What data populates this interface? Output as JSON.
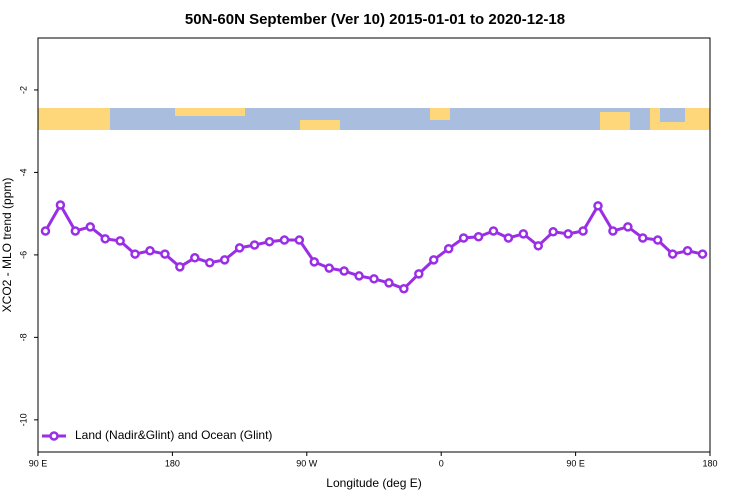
{
  "chart_data": {
    "type": "line",
    "title": "50N-60N September (Ver 10)   2015-01-01 to 2020-12-18",
    "x_label": "Longitude (deg E)",
    "y_label": "XCO2 - MLO trend (ppm)",
    "xlim": [
      90,
      540
    ],
    "xticks": [
      {
        "value": 90,
        "label": "90 E"
      },
      {
        "value": 180,
        "label": "180"
      },
      {
        "value": 270,
        "label": "90 W"
      },
      {
        "value": 360,
        "label": "0"
      },
      {
        "value": 450,
        "label": "90 E"
      },
      {
        "value": 540,
        "label": "180"
      }
    ],
    "ylim": [
      -10.78,
      -0.74
    ],
    "yticks": [
      -2,
      -4,
      -6,
      -8,
      -10
    ],
    "legend": "bottom-left",
    "x": [
      95,
      105,
      115,
      125,
      135,
      145,
      155,
      165,
      175,
      185,
      195,
      205,
      215,
      225,
      235,
      245,
      255,
      265,
      275,
      285,
      295,
      305,
      315,
      325,
      335,
      345,
      355,
      365,
      375,
      385,
      395,
      405,
      415,
      425,
      435,
      445,
      455,
      465,
      475,
      485,
      495,
      505,
      515,
      525,
      535
    ],
    "series": [
      {
        "name": "Land (Nadir&Glint) and Ocean (Glint)",
        "color": "#9a2ee6",
        "values": [
          -5.42,
          -4.79,
          -5.42,
          -5.32,
          -5.61,
          -5.66,
          -5.98,
          -5.9,
          -5.98,
          -6.29,
          -6.07,
          -6.19,
          -6.12,
          -5.83,
          -5.76,
          -5.68,
          -5.64,
          -5.64,
          -6.17,
          -6.32,
          -6.39,
          -6.51,
          -6.58,
          -6.68,
          -6.82,
          -6.46,
          -6.12,
          -5.85,
          -5.59,
          -5.56,
          -5.42,
          -5.59,
          -5.49,
          -5.78,
          -5.44,
          -5.49,
          -5.42,
          -4.81,
          -5.42,
          -5.32,
          -5.59,
          -5.64,
          -5.98,
          -5.9,
          -5.98
        ]
      }
    ]
  }
}
